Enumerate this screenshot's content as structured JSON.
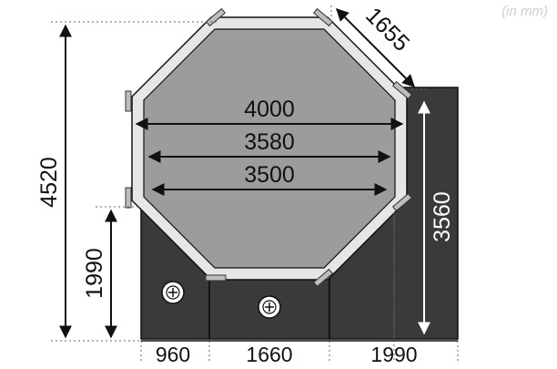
{
  "units_note": "(in mm)",
  "dimensions": {
    "overall_width": "4000",
    "inner_width_a": "3580",
    "inner_width_b": "3500",
    "overall_depth": "4520",
    "side_length": "1990",
    "deck_depth": "3560",
    "edge_length": "1655",
    "bottom_left": "960",
    "bottom_middle": "1660",
    "bottom_right": "1990"
  },
  "colors": {
    "deck": "#3a3a3a",
    "pool_water": "#9c9c9c",
    "rim": "#e6e6e6",
    "line": "#1a1a1a",
    "guide": "#666666"
  },
  "icons": {
    "hatch_left": "circled-plus",
    "hatch_middle": "circled-plus"
  }
}
